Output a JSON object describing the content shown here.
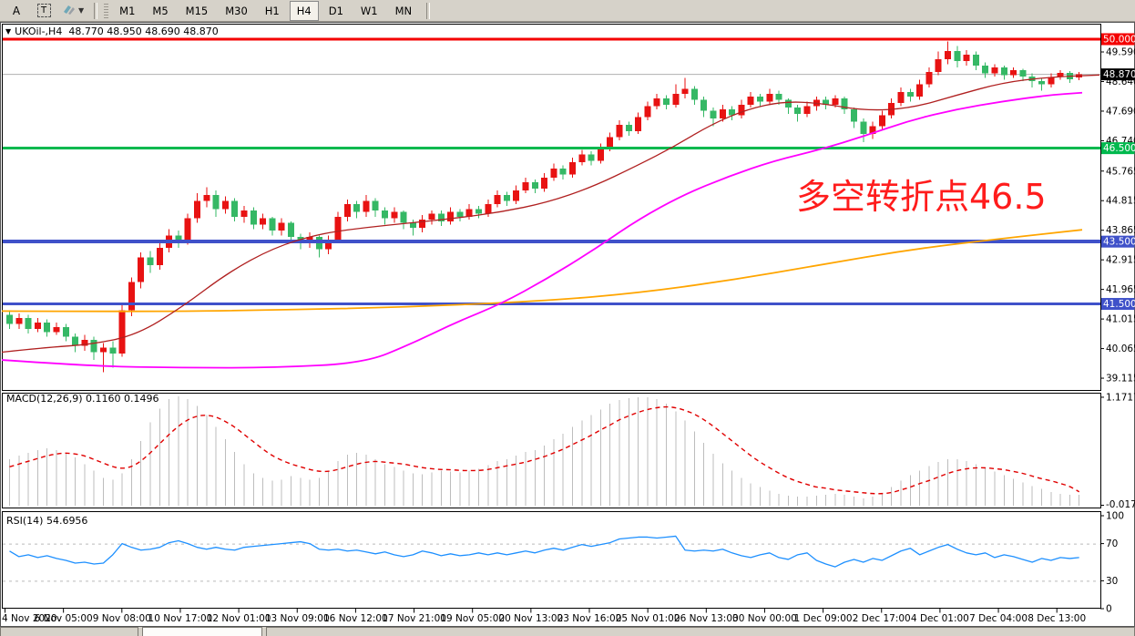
{
  "toolbar": {
    "tools": [
      {
        "label": "A"
      },
      {
        "label": "T"
      }
    ],
    "timeframes": [
      "M1",
      "M5",
      "M15",
      "M30",
      "H1",
      "H4",
      "D1",
      "W1",
      "MN"
    ],
    "active_timeframe": "H4"
  },
  "chart": {
    "symbol_header": "UKOil-,H4  48.770 48.950 48.690 48.870",
    "collapse_glyph": "▼",
    "annotation": {
      "text": "多空转折点46.5",
      "color": "#ff1c1c"
    }
  },
  "chart_data": {
    "type": "candlestick+macd+rsi",
    "symbol": "UKOil-",
    "timeframe": "H4",
    "ohlc_header": {
      "open": "48.770",
      "high": "48.950",
      "low": "48.690",
      "close": "48.870"
    },
    "colors": {
      "up": "#e81212",
      "down": "#35b865",
      "ma_fast": "#b02020",
      "ma_mid": "#ff00ff",
      "ma_slow": "#ffa500",
      "macd_hist": "#bdbdbd",
      "macd_signal": "#e00000",
      "rsi_line": "#1e90ff",
      "current_line": "#b0b0b0",
      "current_badge": "#000000"
    },
    "price_axis": {
      "ticks": [
        "49.590",
        "48.640",
        "47.690",
        "46.740",
        "45.765",
        "44.815",
        "43.865",
        "42.915",
        "41.965",
        "41.015",
        "40.065",
        "39.115"
      ],
      "current": {
        "value": 48.87,
        "label": "48.870"
      }
    },
    "hlines": [
      {
        "price": 50.0,
        "label": "50.000",
        "color": "#f40000",
        "width": 3
      },
      {
        "price": 46.5,
        "label": "46.500",
        "color": "#00b94e",
        "width": 3
      },
      {
        "price": 43.5,
        "label": "43.500",
        "color": "#3f51c9",
        "width": 4
      },
      {
        "price": 41.5,
        "label": "41.500",
        "color": "#3f51c9",
        "width": 3
      }
    ],
    "x_labels": [
      "4 Nov 2020",
      "6 Nov 05:00",
      "9 Nov 08:00",
      "10 Nov 17:00",
      "12 Nov 01:00",
      "13 Nov 09:00",
      "16 Nov 12:00",
      "17 Nov 21:00",
      "19 Nov 05:00",
      "20 Nov 13:00",
      "23 Nov 16:00",
      "25 Nov 01:00",
      "26 Nov 13:00",
      "30 Nov 00:00",
      "1 Dec 09:00",
      "2 Dec 17:00",
      "4 Dec 01:00",
      "7 Dec 04:00",
      "8 Dec 13:00"
    ],
    "candles": [
      [
        41.15,
        41.3,
        40.7,
        40.85
      ],
      [
        40.85,
        41.2,
        40.7,
        41.05
      ],
      [
        41.05,
        41.15,
        40.55,
        40.7
      ],
      [
        40.7,
        41.05,
        40.6,
        40.9
      ],
      [
        40.9,
        41.0,
        40.45,
        40.6
      ],
      [
        40.6,
        40.9,
        40.5,
        40.75
      ],
      [
        40.75,
        40.85,
        40.3,
        40.45
      ],
      [
        40.45,
        40.55,
        39.95,
        40.15
      ],
      [
        40.15,
        40.5,
        40.0,
        40.35
      ],
      [
        40.35,
        40.45,
        39.7,
        39.95
      ],
      [
        39.95,
        40.25,
        39.3,
        40.1
      ],
      [
        40.1,
        40.3,
        39.45,
        39.9
      ],
      [
        39.9,
        41.45,
        39.8,
        41.3
      ],
      [
        41.3,
        42.35,
        41.1,
        42.2
      ],
      [
        42.2,
        43.15,
        42.0,
        43.0
      ],
      [
        43.0,
        43.2,
        42.5,
        42.75
      ],
      [
        42.75,
        43.45,
        42.6,
        43.3
      ],
      [
        43.3,
        43.9,
        43.15,
        43.7
      ],
      [
        43.7,
        43.85,
        43.3,
        43.5
      ],
      [
        43.5,
        44.4,
        43.4,
        44.25
      ],
      [
        44.25,
        45.05,
        44.1,
        44.8
      ],
      [
        44.8,
        45.25,
        44.6,
        45.0
      ],
      [
        45.0,
        45.15,
        44.3,
        44.55
      ],
      [
        44.55,
        44.95,
        44.4,
        44.8
      ],
      [
        44.8,
        44.9,
        44.15,
        44.3
      ],
      [
        44.3,
        44.65,
        44.1,
        44.5
      ],
      [
        44.5,
        44.6,
        43.9,
        44.05
      ],
      [
        44.05,
        44.4,
        43.9,
        44.25
      ],
      [
        44.25,
        44.3,
        43.7,
        43.85
      ],
      [
        43.85,
        44.25,
        43.7,
        44.1
      ],
      [
        44.1,
        44.15,
        43.5,
        43.65
      ],
      [
        43.65,
        43.75,
        43.25,
        43.45
      ],
      [
        43.45,
        43.8,
        43.3,
        43.65
      ],
      [
        43.65,
        43.7,
        43.0,
        43.25
      ],
      [
        43.25,
        43.7,
        43.1,
        43.55
      ],
      [
        43.55,
        44.45,
        43.45,
        44.3
      ],
      [
        44.3,
        44.85,
        44.15,
        44.7
      ],
      [
        44.7,
        44.8,
        44.25,
        44.45
      ],
      [
        44.45,
        45.0,
        44.3,
        44.8
      ],
      [
        44.8,
        44.9,
        44.3,
        44.5
      ],
      [
        44.5,
        44.6,
        44.05,
        44.25
      ],
      [
        44.25,
        44.6,
        44.1,
        44.45
      ],
      [
        44.45,
        44.5,
        43.9,
        44.1
      ],
      [
        44.1,
        44.2,
        43.7,
        43.95
      ],
      [
        43.95,
        44.35,
        43.8,
        44.2
      ],
      [
        44.2,
        44.5,
        44.05,
        44.4
      ],
      [
        44.4,
        44.5,
        44.0,
        44.15
      ],
      [
        44.15,
        44.6,
        44.05,
        44.45
      ],
      [
        44.45,
        44.55,
        44.15,
        44.3
      ],
      [
        44.3,
        44.7,
        44.2,
        44.55
      ],
      [
        44.55,
        44.65,
        44.25,
        44.4
      ],
      [
        44.4,
        44.85,
        44.3,
        44.7
      ],
      [
        44.7,
        45.15,
        44.6,
        45.0
      ],
      [
        45.0,
        45.1,
        44.65,
        44.8
      ],
      [
        44.8,
        45.3,
        44.7,
        45.15
      ],
      [
        45.15,
        45.55,
        45.05,
        45.4
      ],
      [
        45.4,
        45.5,
        45.05,
        45.2
      ],
      [
        45.2,
        45.7,
        45.1,
        45.55
      ],
      [
        45.55,
        46.0,
        45.45,
        45.85
      ],
      [
        45.85,
        45.95,
        45.5,
        45.65
      ],
      [
        45.65,
        46.2,
        45.55,
        46.05
      ],
      [
        46.05,
        46.45,
        45.95,
        46.3
      ],
      [
        46.3,
        46.4,
        45.95,
        46.1
      ],
      [
        46.1,
        46.65,
        46.0,
        46.5
      ],
      [
        46.5,
        47.0,
        46.4,
        46.85
      ],
      [
        46.85,
        47.4,
        46.75,
        47.25
      ],
      [
        47.25,
        47.35,
        46.9,
        47.05
      ],
      [
        47.05,
        47.65,
        46.95,
        47.5
      ],
      [
        47.5,
        48.0,
        47.4,
        47.85
      ],
      [
        47.85,
        48.25,
        47.75,
        48.1
      ],
      [
        48.1,
        48.2,
        47.75,
        47.9
      ],
      [
        47.9,
        48.55,
        47.8,
        48.25
      ],
      [
        48.25,
        48.75,
        48.1,
        48.4
      ],
      [
        48.4,
        48.5,
        47.9,
        48.05
      ],
      [
        48.05,
        48.15,
        47.5,
        47.7
      ],
      [
        47.7,
        47.8,
        47.2,
        47.45
      ],
      [
        47.45,
        47.9,
        47.35,
        47.75
      ],
      [
        47.75,
        47.85,
        47.4,
        47.55
      ],
      [
        47.55,
        48.05,
        47.45,
        47.9
      ],
      [
        47.9,
        48.3,
        47.8,
        48.15
      ],
      [
        48.15,
        48.25,
        47.85,
        48.0
      ],
      [
        48.0,
        48.4,
        47.9,
        48.25
      ],
      [
        48.25,
        48.35,
        47.9,
        48.05
      ],
      [
        48.05,
        48.1,
        47.6,
        47.8
      ],
      [
        47.8,
        47.9,
        47.35,
        47.6
      ],
      [
        47.6,
        48.0,
        47.5,
        47.85
      ],
      [
        47.85,
        48.15,
        47.7,
        48.05
      ],
      [
        48.05,
        48.15,
        47.75,
        47.9
      ],
      [
        47.9,
        48.2,
        47.8,
        48.1
      ],
      [
        48.1,
        48.15,
        47.6,
        47.75
      ],
      [
        47.75,
        47.8,
        47.15,
        47.35
      ],
      [
        47.35,
        47.45,
        46.7,
        46.95
      ],
      [
        46.95,
        47.35,
        46.8,
        47.2
      ],
      [
        47.2,
        47.7,
        47.1,
        47.55
      ],
      [
        47.55,
        48.1,
        47.45,
        47.95
      ],
      [
        47.95,
        48.45,
        47.85,
        48.3
      ],
      [
        48.3,
        48.4,
        48.0,
        48.15
      ],
      [
        48.15,
        48.7,
        48.05,
        48.55
      ],
      [
        48.55,
        49.1,
        48.45,
        48.95
      ],
      [
        48.95,
        49.6,
        48.85,
        49.35
      ],
      [
        49.35,
        49.92,
        49.2,
        49.62
      ],
      [
        49.62,
        49.78,
        49.1,
        49.3
      ],
      [
        49.3,
        49.65,
        49.15,
        49.5
      ],
      [
        49.5,
        49.6,
        49.0,
        49.15
      ],
      [
        49.15,
        49.25,
        48.75,
        48.9
      ],
      [
        48.9,
        49.2,
        48.8,
        49.1
      ],
      [
        49.1,
        49.15,
        48.7,
        48.85
      ],
      [
        48.85,
        49.1,
        48.75,
        49.0
      ],
      [
        49.0,
        49.05,
        48.65,
        48.8
      ],
      [
        48.8,
        48.9,
        48.45,
        48.65
      ],
      [
        48.65,
        48.75,
        48.35,
        48.55
      ],
      [
        48.55,
        48.9,
        48.45,
        48.78
      ],
      [
        48.78,
        49.0,
        48.7,
        48.92
      ],
      [
        48.92,
        48.98,
        48.6,
        48.72
      ],
      [
        48.77,
        48.95,
        48.69,
        48.87
      ]
    ],
    "moving_averages": [
      {
        "name": "ma-fast-darkred",
        "color": "#b02020",
        "width": 1.3,
        "points": [
          [
            2,
            39.95
          ],
          [
            50,
            40.1
          ],
          [
            100,
            40.2
          ],
          [
            150,
            40.5
          ],
          [
            200,
            41.4
          ],
          [
            250,
            42.5
          ],
          [
            300,
            43.3
          ],
          [
            350,
            43.75
          ],
          [
            400,
            43.95
          ],
          [
            450,
            44.1
          ],
          [
            500,
            44.25
          ],
          [
            550,
            44.45
          ],
          [
            600,
            44.75
          ],
          [
            650,
            45.25
          ],
          [
            700,
            45.95
          ],
          [
            740,
            46.55
          ],
          [
            780,
            47.25
          ],
          [
            820,
            47.75
          ],
          [
            860,
            48.0
          ],
          [
            900,
            47.95
          ],
          [
            950,
            47.7
          ],
          [
            1000,
            47.78
          ],
          [
            1050,
            48.2
          ],
          [
            1100,
            48.6
          ],
          [
            1150,
            48.78
          ],
          [
            1207,
            48.85
          ]
        ]
      },
      {
        "name": "ma-mid-magenta",
        "color": "#ff00ff",
        "width": 1.8,
        "points": [
          [
            2,
            39.7
          ],
          [
            100,
            39.5
          ],
          [
            200,
            39.45
          ],
          [
            300,
            39.45
          ],
          [
            400,
            39.6
          ],
          [
            450,
            40.2
          ],
          [
            500,
            40.9
          ],
          [
            550,
            41.5
          ],
          [
            600,
            42.3
          ],
          [
            650,
            43.2
          ],
          [
            700,
            44.2
          ],
          [
            750,
            45.0
          ],
          [
            800,
            45.6
          ],
          [
            850,
            46.1
          ],
          [
            900,
            46.45
          ],
          [
            950,
            46.9
          ],
          [
            1000,
            47.4
          ],
          [
            1050,
            47.75
          ],
          [
            1100,
            48.0
          ],
          [
            1150,
            48.2
          ],
          [
            1188,
            48.28
          ]
        ]
      },
      {
        "name": "ma-slow-orange",
        "color": "#ffa500",
        "width": 1.8,
        "points": [
          [
            2,
            41.27
          ],
          [
            150,
            41.25
          ],
          [
            300,
            41.3
          ],
          [
            450,
            41.4
          ],
          [
            600,
            41.6
          ],
          [
            700,
            41.85
          ],
          [
            800,
            42.25
          ],
          [
            900,
            42.75
          ],
          [
            1000,
            43.25
          ],
          [
            1100,
            43.6
          ],
          [
            1188,
            43.88
          ]
        ]
      }
    ],
    "macd": {
      "label": "MACD(12,26,9) 0.1160 0.1496",
      "axis": {
        "top": "1.1717",
        "bottom": "-0.0172"
      },
      "hist": [
        0.5,
        0.54,
        0.57,
        0.6,
        0.62,
        0.6,
        0.57,
        0.52,
        0.45,
        0.38,
        0.3,
        0.28,
        0.35,
        0.5,
        0.7,
        0.9,
        1.05,
        1.15,
        1.18,
        1.15,
        1.08,
        0.98,
        0.85,
        0.72,
        0.58,
        0.45,
        0.35,
        0.3,
        0.27,
        0.28,
        0.32,
        0.3,
        0.28,
        0.3,
        0.38,
        0.48,
        0.55,
        0.57,
        0.55,
        0.5,
        0.45,
        0.42,
        0.38,
        0.35,
        0.34,
        0.36,
        0.38,
        0.37,
        0.36,
        0.38,
        0.4,
        0.44,
        0.48,
        0.5,
        0.54,
        0.58,
        0.6,
        0.65,
        0.72,
        0.78,
        0.85,
        0.92,
        0.98,
        1.04,
        1.1,
        1.14,
        1.16,
        1.17,
        1.17,
        1.15,
        1.1,
        1.02,
        0.92,
        0.8,
        0.68,
        0.56,
        0.46,
        0.38,
        0.3,
        0.24,
        0.2,
        0.16,
        0.13,
        0.11,
        0.1,
        0.1,
        0.11,
        0.12,
        0.13,
        0.12,
        0.1,
        0.08,
        0.1,
        0.14,
        0.2,
        0.27,
        0.33,
        0.38,
        0.43,
        0.47,
        0.5,
        0.5,
        0.48,
        0.45,
        0.41,
        0.37,
        0.33,
        0.29,
        0.25,
        0.21,
        0.18,
        0.15,
        0.13,
        0.12,
        0.116
      ],
      "signal": [
        0.42,
        0.45,
        0.48,
        0.51,
        0.54,
        0.56,
        0.57,
        0.56,
        0.54,
        0.5,
        0.46,
        0.42,
        0.4,
        0.42,
        0.48,
        0.57,
        0.67,
        0.77,
        0.86,
        0.93,
        0.97,
        0.98,
        0.96,
        0.91,
        0.85,
        0.77,
        0.69,
        0.61,
        0.54,
        0.49,
        0.45,
        0.42,
        0.39,
        0.37,
        0.37,
        0.39,
        0.42,
        0.45,
        0.47,
        0.48,
        0.47,
        0.46,
        0.45,
        0.43,
        0.41,
        0.4,
        0.39,
        0.39,
        0.38,
        0.38,
        0.38,
        0.39,
        0.41,
        0.43,
        0.45,
        0.47,
        0.5,
        0.53,
        0.57,
        0.61,
        0.66,
        0.71,
        0.76,
        0.82,
        0.87,
        0.93,
        0.97,
        1.01,
        1.04,
        1.06,
        1.07,
        1.06,
        1.03,
        0.99,
        0.93,
        0.86,
        0.78,
        0.7,
        0.62,
        0.54,
        0.47,
        0.41,
        0.35,
        0.3,
        0.26,
        0.23,
        0.2,
        0.19,
        0.17,
        0.16,
        0.15,
        0.14,
        0.13,
        0.13,
        0.14,
        0.17,
        0.2,
        0.24,
        0.27,
        0.31,
        0.35,
        0.38,
        0.4,
        0.41,
        0.41,
        0.4,
        0.39,
        0.37,
        0.35,
        0.32,
        0.29,
        0.27,
        0.24,
        0.21,
        0.15
      ]
    },
    "rsi": {
      "label": "RSI(14) 54.6956",
      "axis": [
        "100",
        "70",
        "30",
        "0"
      ],
      "levels": [
        70,
        30
      ],
      "values": [
        62,
        56,
        58,
        55,
        57,
        54,
        52,
        49,
        50,
        48,
        49,
        58,
        70,
        66,
        63,
        64,
        66,
        71,
        73,
        70,
        66,
        64,
        66,
        64,
        63,
        66,
        67,
        68,
        69,
        70,
        71,
        72,
        70,
        64,
        63,
        64,
        62,
        63,
        61,
        59,
        61,
        58,
        56,
        58,
        62,
        60,
        57,
        59,
        57,
        58,
        60,
        58,
        60,
        58,
        60,
        62,
        60,
        63,
        65,
        63,
        66,
        69,
        67,
        69,
        71,
        75,
        76,
        77,
        77,
        76,
        77,
        78,
        63,
        62,
        63,
        62,
        64,
        60,
        57,
        55,
        58,
        60,
        55,
        53,
        58,
        60,
        52,
        48,
        45,
        50,
        53,
        50,
        54,
        52,
        57,
        62,
        65,
        58,
        62,
        66,
        69,
        64,
        60,
        58,
        60,
        55,
        58,
        56,
        53,
        50,
        54,
        52,
        55,
        54,
        55
      ]
    }
  }
}
